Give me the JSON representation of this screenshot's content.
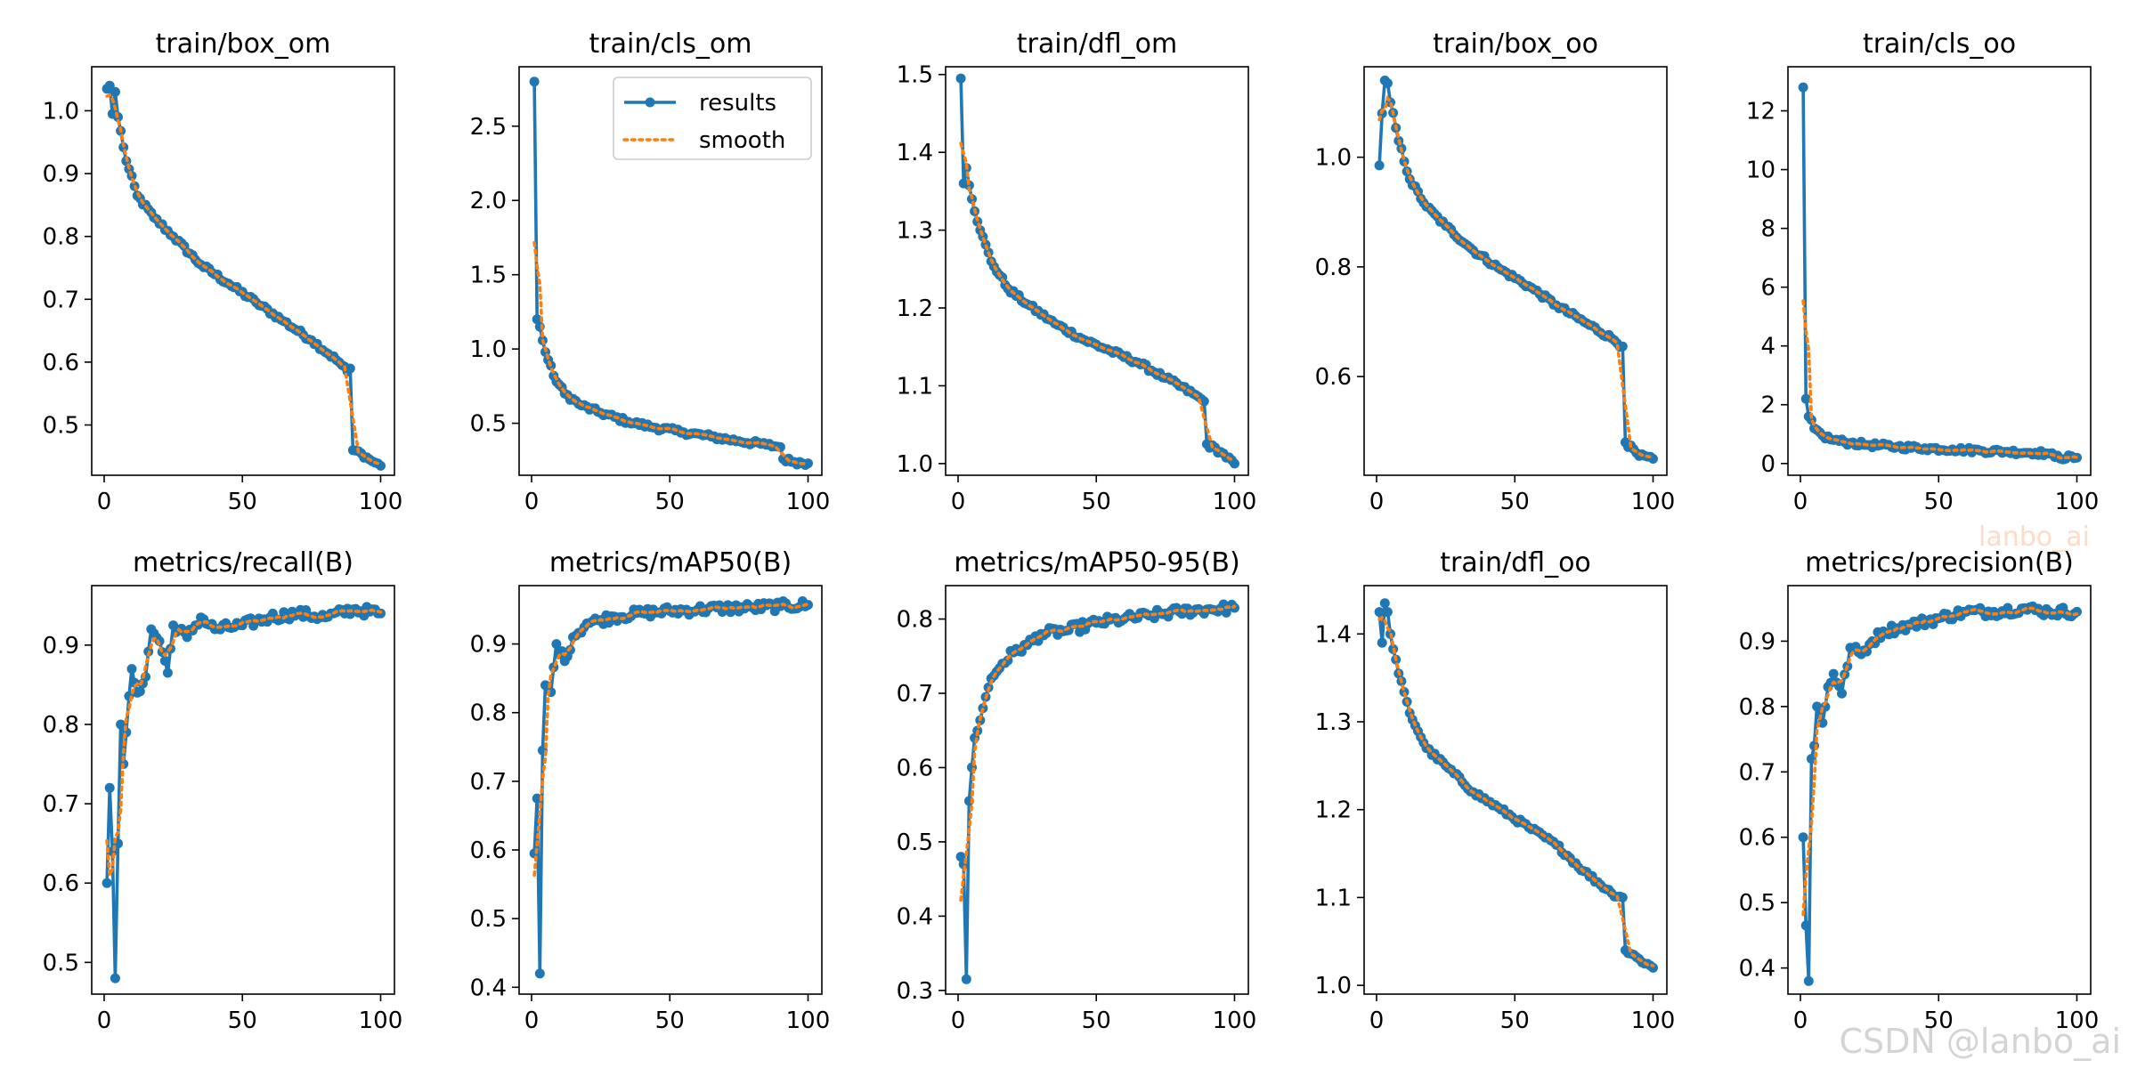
{
  "figure": {
    "legend": {
      "results": "results",
      "smooth": "smooth"
    },
    "colors": {
      "results": "#1f77b4",
      "smooth": "#ff7f0e",
      "axis": "#000000"
    },
    "watermark": "CSDN @lanbo_ai",
    "watermark_small": "lanbo_ai"
  },
  "chart_data": [
    {
      "type": "line",
      "title": "train/box_om",
      "ylim": [
        0.42,
        1.07
      ],
      "yticks": [
        0.5,
        0.6,
        0.7,
        0.8,
        0.9,
        1.0
      ],
      "yfmt": 1,
      "legend": false,
      "anchors": [
        [
          1,
          1.035
        ],
        [
          2,
          1.04
        ],
        [
          3,
          0.995
        ],
        [
          4,
          1.03
        ],
        [
          5,
          0.99
        ],
        [
          8,
          0.92
        ],
        [
          12,
          0.865
        ],
        [
          18,
          0.83
        ],
        [
          25,
          0.8
        ],
        [
          35,
          0.755
        ],
        [
          45,
          0.725
        ],
        [
          55,
          0.695
        ],
        [
          65,
          0.665
        ],
        [
          75,
          0.635
        ],
        [
          85,
          0.6
        ],
        [
          88,
          0.585
        ],
        [
          89,
          0.59
        ],
        [
          90,
          0.46
        ],
        [
          93,
          0.455
        ],
        [
          96,
          0.445
        ],
        [
          100,
          0.435
        ]
      ]
    },
    {
      "type": "line",
      "title": "train/cls_om",
      "ylim": [
        0.15,
        2.9
      ],
      "yticks": [
        0.5,
        1.0,
        1.5,
        2.0,
        2.5
      ],
      "yfmt": 1,
      "legend": true,
      "anchors": [
        [
          1,
          2.8
        ],
        [
          2,
          1.2
        ],
        [
          3,
          1.15
        ],
        [
          5,
          0.98
        ],
        [
          8,
          0.82
        ],
        [
          12,
          0.7
        ],
        [
          18,
          0.62
        ],
        [
          25,
          0.57
        ],
        [
          35,
          0.51
        ],
        [
          45,
          0.47
        ],
        [
          55,
          0.44
        ],
        [
          65,
          0.41
        ],
        [
          75,
          0.38
        ],
        [
          85,
          0.355
        ],
        [
          90,
          0.34
        ],
        [
          91,
          0.26
        ],
        [
          95,
          0.24
        ],
        [
          100,
          0.23
        ]
      ]
    },
    {
      "type": "line",
      "title": "train/dfl_om",
      "ylim": [
        0.985,
        1.51
      ],
      "yticks": [
        1.0,
        1.1,
        1.2,
        1.3,
        1.4,
        1.5
      ],
      "yfmt": 1,
      "legend": false,
      "anchors": [
        [
          1,
          1.495
        ],
        [
          2,
          1.36
        ],
        [
          3,
          1.38
        ],
        [
          5,
          1.34
        ],
        [
          8,
          1.3
        ],
        [
          12,
          1.26
        ],
        [
          18,
          1.225
        ],
        [
          25,
          1.205
        ],
        [
          35,
          1.18
        ],
        [
          45,
          1.16
        ],
        [
          55,
          1.145
        ],
        [
          65,
          1.13
        ],
        [
          75,
          1.11
        ],
        [
          85,
          1.09
        ],
        [
          89,
          1.08
        ],
        [
          90,
          1.025
        ],
        [
          95,
          1.015
        ],
        [
          100,
          1.0
        ]
      ]
    },
    {
      "type": "line",
      "title": "train/box_oo",
      "ylim": [
        0.42,
        1.165
      ],
      "yticks": [
        0.6,
        0.8,
        1.0
      ],
      "yfmt": 1,
      "legend": false,
      "anchors": [
        [
          1,
          0.985
        ],
        [
          2,
          1.08
        ],
        [
          3,
          1.14
        ],
        [
          4,
          1.135
        ],
        [
          5,
          1.1
        ],
        [
          8,
          1.03
        ],
        [
          12,
          0.96
        ],
        [
          18,
          0.91
        ],
        [
          25,
          0.875
        ],
        [
          35,
          0.83
        ],
        [
          45,
          0.795
        ],
        [
          55,
          0.765
        ],
        [
          65,
          0.73
        ],
        [
          75,
          0.7
        ],
        [
          85,
          0.67
        ],
        [
          89,
          0.655
        ],
        [
          90,
          0.48
        ],
        [
          95,
          0.455
        ],
        [
          100,
          0.45
        ]
      ]
    },
    {
      "type": "line",
      "title": "train/cls_oo",
      "ylim": [
        -0.4,
        13.5
      ],
      "yticks": [
        0,
        2,
        4,
        6,
        8,
        10,
        12
      ],
      "yfmt": 0,
      "legend": false,
      "anchors": [
        [
          1,
          12.8
        ],
        [
          2,
          2.2
        ],
        [
          3,
          1.6
        ],
        [
          5,
          1.2
        ],
        [
          8,
          0.95
        ],
        [
          12,
          0.8
        ],
        [
          18,
          0.7
        ],
        [
          25,
          0.63
        ],
        [
          35,
          0.57
        ],
        [
          45,
          0.52
        ],
        [
          55,
          0.48
        ],
        [
          65,
          0.44
        ],
        [
          75,
          0.4
        ],
        [
          85,
          0.37
        ],
        [
          90,
          0.34
        ],
        [
          92,
          0.22
        ],
        [
          100,
          0.2
        ]
      ]
    },
    {
      "type": "line",
      "title": "metrics/recall(B)",
      "ylim": [
        0.46,
        0.975
      ],
      "yticks": [
        0.5,
        0.6,
        0.7,
        0.8,
        0.9
      ],
      "yfmt": 1,
      "legend": false,
      "anchors": [
        [
          1,
          0.6
        ],
        [
          2,
          0.72
        ],
        [
          3,
          0.64
        ],
        [
          4,
          0.48
        ],
        [
          5,
          0.65
        ],
        [
          6,
          0.8
        ],
        [
          7,
          0.75
        ],
        [
          8,
          0.79
        ],
        [
          10,
          0.87
        ],
        [
          12,
          0.84
        ],
        [
          15,
          0.86
        ],
        [
          17,
          0.92
        ],
        [
          20,
          0.905
        ],
        [
          23,
          0.865
        ],
        [
          25,
          0.925
        ],
        [
          30,
          0.91
        ],
        [
          35,
          0.935
        ],
        [
          40,
          0.92
        ],
        [
          50,
          0.925
        ],
        [
          60,
          0.935
        ],
        [
          70,
          0.94
        ],
        [
          80,
          0.935
        ],
        [
          90,
          0.945
        ],
        [
          100,
          0.94
        ]
      ]
    },
    {
      "type": "line",
      "title": "metrics/mAP50(B)",
      "ylim": [
        0.39,
        0.985
      ],
      "yticks": [
        0.4,
        0.5,
        0.6,
        0.7,
        0.8,
        0.9
      ],
      "yfmt": 1,
      "legend": false,
      "anchors": [
        [
          1,
          0.595
        ],
        [
          2,
          0.675
        ],
        [
          3,
          0.42
        ],
        [
          4,
          0.745
        ],
        [
          5,
          0.84
        ],
        [
          7,
          0.83
        ],
        [
          9,
          0.9
        ],
        [
          12,
          0.875
        ],
        [
          15,
          0.91
        ],
        [
          20,
          0.93
        ],
        [
          25,
          0.935
        ],
        [
          30,
          0.94
        ],
        [
          40,
          0.945
        ],
        [
          50,
          0.948
        ],
        [
          60,
          0.95
        ],
        [
          70,
          0.952
        ],
        [
          80,
          0.953
        ],
        [
          90,
          0.955
        ],
        [
          100,
          0.957
        ]
      ]
    },
    {
      "type": "line",
      "title": "metrics/mAP50-95(B)",
      "ylim": [
        0.295,
        0.845
      ],
      "yticks": [
        0.3,
        0.4,
        0.5,
        0.6,
        0.7,
        0.8
      ],
      "yfmt": 1,
      "legend": false,
      "anchors": [
        [
          1,
          0.48
        ],
        [
          2,
          0.47
        ],
        [
          3,
          0.315
        ],
        [
          4,
          0.555
        ],
        [
          6,
          0.64
        ],
        [
          9,
          0.68
        ],
        [
          12,
          0.72
        ],
        [
          16,
          0.74
        ],
        [
          20,
          0.755
        ],
        [
          25,
          0.765
        ],
        [
          30,
          0.78
        ],
        [
          40,
          0.785
        ],
        [
          50,
          0.795
        ],
        [
          60,
          0.8
        ],
        [
          70,
          0.805
        ],
        [
          80,
          0.81
        ],
        [
          90,
          0.813
        ],
        [
          100,
          0.815
        ]
      ]
    },
    {
      "type": "line",
      "title": "train/dfl_oo",
      "ylim": [
        0.99,
        1.455
      ],
      "yticks": [
        1.0,
        1.1,
        1.2,
        1.3,
        1.4
      ],
      "yfmt": 1,
      "legend": false,
      "anchors": [
        [
          1,
          1.425
        ],
        [
          2,
          1.39
        ],
        [
          3,
          1.435
        ],
        [
          4,
          1.425
        ],
        [
          5,
          1.4
        ],
        [
          8,
          1.355
        ],
        [
          12,
          1.31
        ],
        [
          18,
          1.27
        ],
        [
          25,
          1.25
        ],
        [
          35,
          1.22
        ],
        [
          45,
          1.2
        ],
        [
          55,
          1.18
        ],
        [
          65,
          1.16
        ],
        [
          75,
          1.13
        ],
        [
          85,
          1.105
        ],
        [
          89,
          1.1
        ],
        [
          90,
          1.04
        ],
        [
          95,
          1.03
        ],
        [
          100,
          1.02
        ]
      ]
    },
    {
      "type": "line",
      "title": "metrics/precision(B)",
      "ylim": [
        0.36,
        0.985
      ],
      "yticks": [
        0.4,
        0.5,
        0.6,
        0.7,
        0.8,
        0.9
      ],
      "yfmt": 1,
      "legend": false,
      "anchors": [
        [
          1,
          0.6
        ],
        [
          2,
          0.465
        ],
        [
          3,
          0.38
        ],
        [
          4,
          0.72
        ],
        [
          5,
          0.74
        ],
        [
          6,
          0.8
        ],
        [
          8,
          0.775
        ],
        [
          10,
          0.83
        ],
        [
          12,
          0.85
        ],
        [
          15,
          0.82
        ],
        [
          18,
          0.89
        ],
        [
          22,
          0.88
        ],
        [
          26,
          0.9
        ],
        [
          30,
          0.915
        ],
        [
          35,
          0.92
        ],
        [
          40,
          0.925
        ],
        [
          50,
          0.935
        ],
        [
          60,
          0.945
        ],
        [
          70,
          0.945
        ],
        [
          80,
          0.95
        ],
        [
          90,
          0.945
        ],
        [
          100,
          0.945
        ]
      ]
    }
  ]
}
